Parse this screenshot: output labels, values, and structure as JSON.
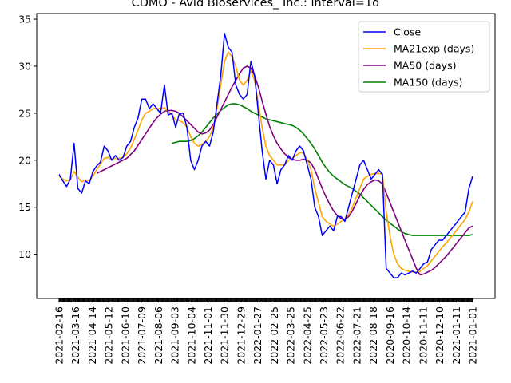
{
  "chart_data": {
    "type": "line",
    "title": "CDMO - Avid Bioservices_ Inc.: interval=1d",
    "xlabel": "",
    "ylabel": "",
    "ylim": [
      5.3,
      35.6
    ],
    "yticks": [
      10,
      15,
      20,
      25,
      30,
      35
    ],
    "grid": false,
    "legend_position": "upper right",
    "x_tick_labels": [
      "2021-02-16",
      "2021-03-16",
      "2021-04-14",
      "2021-05-12",
      "2021-06-10",
      "2021-07-09",
      "2021-08-06",
      "2021-09-03",
      "2021-10-04",
      "2021-11-01",
      "2021-11-30",
      "2021-12-29",
      "2022-01-27",
      "2022-02-25",
      "2022-03-25",
      "2022-04-25",
      "2022-05-23",
      "2022-06-22",
      "2022-07-21",
      "2022-08-18",
      "2020-09-16",
      "2020-10-14",
      "2020-11-11",
      "2020-12-10",
      "2021-01-11",
      "2021-01-01"
    ],
    "x_index": [
      0,
      5,
      10,
      15,
      20,
      25,
      30,
      35,
      40,
      45,
      50,
      55,
      60,
      65,
      70,
      75,
      80,
      85,
      90,
      95,
      100,
      105,
      110,
      115,
      120,
      125,
      130,
      135,
      140,
      145,
      150,
      155,
      160,
      165,
      170,
      175,
      180,
      185,
      190,
      195,
      200,
      205,
      210,
      215,
      220,
      225,
      230,
      235,
      240,
      245,
      250,
      255,
      260,
      265,
      270,
      275,
      280,
      285,
      290,
      295,
      300,
      305,
      310,
      315,
      320,
      325,
      330,
      335,
      340,
      345,
      350,
      355,
      360,
      365,
      370,
      375,
      380,
      385,
      390,
      395,
      400,
      405,
      410,
      415,
      420,
      425,
      430,
      435,
      440,
      445,
      450,
      455,
      460,
      465,
      470,
      475,
      480,
      485,
      490,
      495,
      500,
      505,
      510,
      515,
      520,
      525,
      530,
      535,
      540,
      545,
      550
    ],
    "series": [
      {
        "name": "Close",
        "color": "#0000ff",
        "values": [
          18.5,
          17.8,
          17.2,
          18.0,
          21.8,
          17.0,
          16.5,
          17.8,
          17.5,
          18.8,
          19.4,
          19.8,
          21.5,
          21.0,
          20.0,
          20.5,
          20.0,
          20.3,
          21.5,
          22.0,
          23.5,
          24.5,
          26.5,
          26.5,
          25.5,
          26.0,
          25.5,
          25.0,
          28.0,
          24.8,
          25.0,
          23.5,
          25.0,
          25.0,
          23.5,
          20.0,
          19.0,
          20.0,
          21.5,
          22.0,
          21.5,
          23.0,
          26.0,
          29.0,
          33.5,
          32.0,
          31.5,
          28.0,
          27.0,
          26.5,
          27.0,
          30.5,
          29.0,
          25.0,
          21.0,
          18.0,
          20.0,
          19.5,
          17.5,
          19.0,
          19.5,
          20.5,
          20.0,
          21.0,
          21.5,
          21.0,
          19.5,
          18.0,
          15.0,
          14.0,
          12.0,
          12.5,
          13.0,
          12.5,
          14.0,
          14.0,
          13.5,
          15.0,
          16.5,
          18.0,
          19.5,
          20.0,
          19.0,
          18.0,
          18.5,
          19.0,
          18.5,
          8.5,
          8.0,
          7.5,
          7.5,
          8.0,
          7.8,
          8.0,
          8.2,
          8.0,
          8.5,
          9.0,
          9.2,
          10.5,
          11.0,
          11.5,
          11.5,
          12.0,
          12.5,
          13.0,
          13.5,
          14.0,
          14.5,
          17.0,
          18.3
        ]
      },
      {
        "name": "MA21exp (days)",
        "color": "#ffa500",
        "values": [
          18.3,
          18.0,
          17.8,
          17.9,
          18.8,
          18.2,
          17.7,
          17.9,
          17.8,
          18.3,
          19.0,
          19.6,
          20.2,
          20.3,
          20.1,
          20.2,
          20.2,
          20.3,
          20.7,
          21.3,
          22.2,
          23.2,
          24.3,
          25.0,
          25.2,
          25.5,
          25.5,
          25.5,
          25.6,
          25.2,
          24.8,
          24.3,
          24.2,
          24.0,
          23.5,
          22.5,
          21.8,
          21.5,
          21.7,
          22.0,
          22.5,
          23.5,
          25.5,
          28.0,
          30.5,
          31.5,
          31.0,
          30.0,
          28.5,
          28.0,
          28.5,
          29.5,
          28.5,
          26.0,
          23.5,
          21.5,
          20.5,
          20.0,
          19.5,
          19.5,
          19.5,
          20.0,
          20.2,
          20.5,
          20.8,
          20.8,
          20.0,
          19.0,
          17.0,
          15.5,
          14.0,
          13.5,
          13.2,
          13.0,
          13.2,
          13.5,
          13.8,
          14.2,
          15.0,
          16.0,
          17.0,
          18.0,
          18.3,
          18.5,
          18.6,
          18.6,
          18.5,
          14.5,
          12.0,
          10.0,
          9.0,
          8.5,
          8.3,
          8.2,
          8.1,
          8.1,
          8.2,
          8.5,
          8.8,
          9.3,
          9.8,
          10.3,
          10.8,
          11.2,
          11.7,
          12.2,
          12.7,
          13.2,
          13.7,
          14.5,
          15.6
        ]
      },
      {
        "name": "MA50 (days)",
        "color": "#800080",
        "values": [
          null,
          null,
          null,
          null,
          null,
          null,
          null,
          null,
          null,
          null,
          18.6,
          18.8,
          19.0,
          19.2,
          19.4,
          19.6,
          19.8,
          20.0,
          20.2,
          20.6,
          21.0,
          21.6,
          22.2,
          22.8,
          23.4,
          24.0,
          24.5,
          24.9,
          25.2,
          25.3,
          25.3,
          25.2,
          25.0,
          24.6,
          24.2,
          23.8,
          23.4,
          23.0,
          22.8,
          22.9,
          23.2,
          23.8,
          24.6,
          25.4,
          26.2,
          27.0,
          27.8,
          28.5,
          29.2,
          29.8,
          30.0,
          29.8,
          29.0,
          27.8,
          26.3,
          24.9,
          23.6,
          22.6,
          21.8,
          21.2,
          20.7,
          20.3,
          20.1,
          20.0,
          20.0,
          20.1,
          20.0,
          19.7,
          19.0,
          18.0,
          17.0,
          16.1,
          15.3,
          14.6,
          14.1,
          13.8,
          13.7,
          14.0,
          14.6,
          15.4,
          16.2,
          16.9,
          17.4,
          17.7,
          17.9,
          17.8,
          17.5,
          16.5,
          15.5,
          14.5,
          13.5,
          12.5,
          11.5,
          10.5,
          9.5,
          8.5,
          7.8,
          7.9,
          8.1,
          8.3,
          8.6,
          9.0,
          9.4,
          9.8,
          10.3,
          10.8,
          11.3,
          11.8,
          12.3,
          12.8,
          13.0
        ]
      },
      {
        "name": "MA150 (days)",
        "color": "#008000",
        "values": [
          null,
          null,
          null,
          null,
          null,
          null,
          null,
          null,
          null,
          null,
          null,
          null,
          null,
          null,
          null,
          null,
          null,
          null,
          null,
          null,
          null,
          null,
          null,
          null,
          null,
          null,
          null,
          null,
          null,
          null,
          21.8,
          21.9,
          22.0,
          22.0,
          22.0,
          22.1,
          22.3,
          22.6,
          23.0,
          23.5,
          24.0,
          24.5,
          24.9,
          25.3,
          25.6,
          25.9,
          26.0,
          26.0,
          25.9,
          25.7,
          25.5,
          25.2,
          25.0,
          24.8,
          24.6,
          24.4,
          24.3,
          24.2,
          24.1,
          24.0,
          23.9,
          23.8,
          23.7,
          23.5,
          23.2,
          22.8,
          22.3,
          21.8,
          21.2,
          20.5,
          19.8,
          19.2,
          18.7,
          18.3,
          18.0,
          17.7,
          17.4,
          17.2,
          17.0,
          16.7,
          16.4,
          16.0,
          15.6,
          15.2,
          14.8,
          14.4,
          14.0,
          13.6,
          13.3,
          13.0,
          12.7,
          12.4,
          12.2,
          12.1,
          12.0,
          12.0,
          12.0,
          12.0,
          12.0,
          12.0,
          12.0,
          12.0,
          12.0,
          12.0,
          12.0,
          12.0,
          12.0,
          12.0,
          12.0,
          12.0,
          12.1
        ]
      }
    ]
  }
}
